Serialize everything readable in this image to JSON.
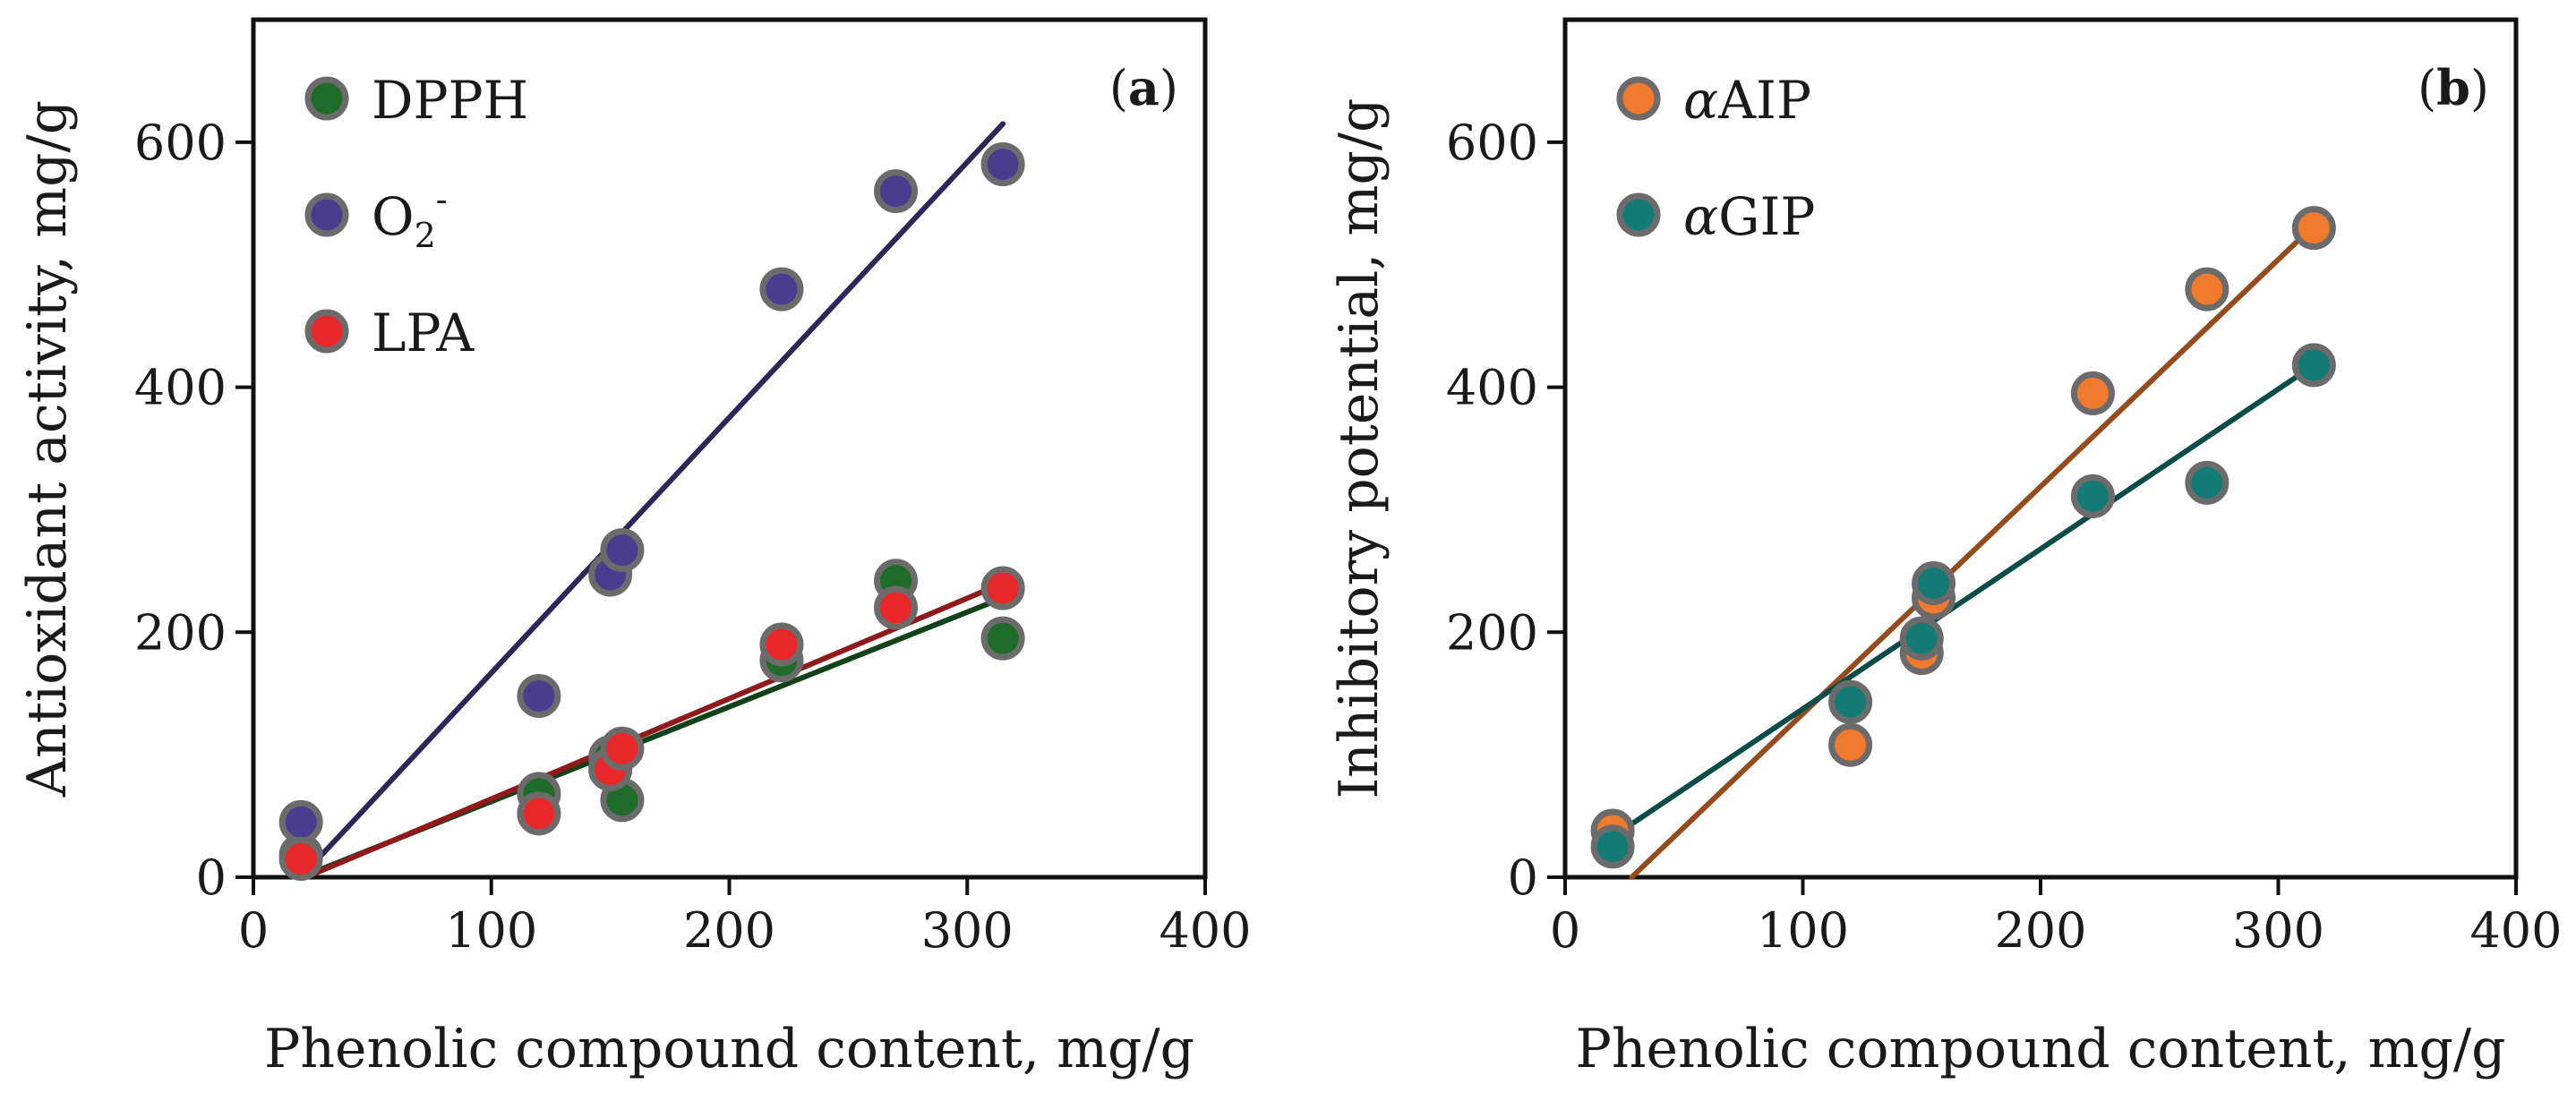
{
  "chart_data": [
    {
      "type": "scatter",
      "panel_label": "(a)",
      "xlabel": "Phenolic compound content, mg/g",
      "ylabel": "Antioxidant activity, mg/g",
      "xlim": [
        0,
        400
      ],
      "ylim": [
        0,
        700
      ],
      "xticks": [
        0,
        100,
        200,
        300,
        400
      ],
      "yticks": [
        0,
        200,
        400,
        600
      ],
      "legend_position": "top-left",
      "series": [
        {
          "name": "DPPH",
          "label_main": "DPPH",
          "label_sub": "",
          "label_sup": "",
          "color": "#1f6b2a",
          "x": [
            20,
            120,
            150,
            155,
            222,
            270,
            315
          ],
          "y": [
            18,
            68,
            98,
            63,
            177,
            242,
            195
          ],
          "fit": [
            [
              20,
              0
            ],
            [
              315,
              228
            ]
          ]
        },
        {
          "name": "O2-",
          "label_main": "O",
          "label_sub": "2",
          "label_sup": "-",
          "color": "#4a3c8f",
          "x": [
            20,
            120,
            150,
            155,
            222,
            270,
            315
          ],
          "y": [
            45,
            148,
            247,
            267,
            480,
            560,
            582
          ],
          "fit": [
            [
              20,
              0
            ],
            [
              315,
              615
            ]
          ]
        },
        {
          "name": "LPA",
          "label_main": "LPA",
          "label_sub": "",
          "label_sup": "",
          "color": "#e8282b",
          "x": [
            20,
            120,
            150,
            155,
            222,
            270,
            315
          ],
          "y": [
            15,
            52,
            88,
            105,
            190,
            220,
            236
          ],
          "fit": [
            [
              22,
              0
            ],
            [
              315,
              240
            ]
          ]
        }
      ]
    },
    {
      "type": "scatter",
      "panel_label": "(b)",
      "xlabel": "Phenolic compound content, mg/g",
      "ylabel": "Inhibitory potential, mg/g",
      "xlim": [
        0,
        400
      ],
      "ylim": [
        0,
        700
      ],
      "xticks": [
        0,
        100,
        200,
        300,
        400
      ],
      "yticks": [
        0,
        200,
        400,
        600
      ],
      "legend_position": "top-left",
      "series": [
        {
          "name": "αAIP",
          "label_greek": "α",
          "label_main": "AIP",
          "label_sub": "",
          "label_sup": "",
          "color": "#f07a2e",
          "x": [
            20,
            120,
            150,
            155,
            222,
            270,
            315
          ],
          "y": [
            38,
            108,
            183,
            228,
            395,
            480,
            530
          ],
          "fit": [
            [
              28,
              0
            ],
            [
              315,
              532
            ]
          ]
        },
        {
          "name": "αGIP",
          "label_greek": "α",
          "label_main": "GIP",
          "label_sub": "",
          "label_sup": "",
          "color": "#137a74",
          "x": [
            20,
            120,
            150,
            155,
            222,
            270,
            315
          ],
          "y": [
            25,
            143,
            195,
            240,
            311,
            322,
            418
          ],
          "fit": [
            [
              20,
              33
            ],
            [
              315,
              418
            ]
          ]
        }
      ]
    }
  ]
}
